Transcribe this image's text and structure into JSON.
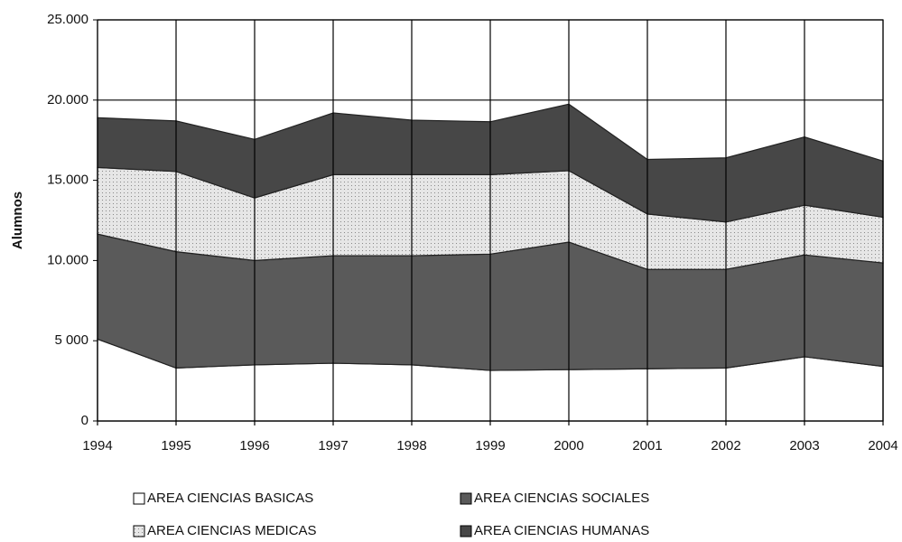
{
  "chart_data": {
    "type": "stacked_area",
    "y_label": "Alumnos",
    "x": [
      1994,
      1995,
      1996,
      1997,
      1998,
      1999,
      2000,
      2001,
      2002,
      2003,
      2004
    ],
    "xlim": [
      1994,
      2004
    ],
    "xticks": [
      1994,
      1995,
      1996,
      1997,
      1998,
      1999,
      2000,
      2001,
      2002,
      2003,
      2004
    ],
    "ylim": [
      0,
      25000
    ],
    "yticks": [
      {
        "value": 0,
        "label": "0"
      },
      {
        "value": 5000,
        "label": "5 000"
      },
      {
        "value": 10000,
        "label": "10.000"
      },
      {
        "value": 15000,
        "label": "15.000"
      },
      {
        "value": 20000,
        "label": "20.000"
      },
      {
        "value": 25000,
        "label": "25.000"
      }
    ],
    "grid": true,
    "legend": "bottom",
    "series": [
      {
        "name": "AREA CIENCIAS BASICAS",
        "color": "#ffffff",
        "values": [
          5100,
          3300,
          3500,
          3600,
          3500,
          3150,
          3200,
          3250,
          3300,
          4000,
          3400
        ]
      },
      {
        "name": "AREA CIENCIAS SOCIALES",
        "color": "#5a5a5a",
        "values": [
          6550,
          7250,
          6500,
          6700,
          6800,
          7250,
          7950,
          6200,
          6150,
          6350,
          6450
        ]
      },
      {
        "name": "AREA CIENCIAS MEDICAS",
        "color": "#e6e6e6",
        "values": [
          4150,
          5000,
          3900,
          5050,
          5050,
          4950,
          4450,
          3450,
          2950,
          3100,
          2850
        ]
      },
      {
        "name": "AREA CIENCIAS HUMANAS",
        "color": "#474747",
        "values": [
          3100,
          3150,
          3650,
          3850,
          3400,
          3300,
          4150,
          3400,
          4000,
          4250,
          3500
        ]
      }
    ]
  }
}
